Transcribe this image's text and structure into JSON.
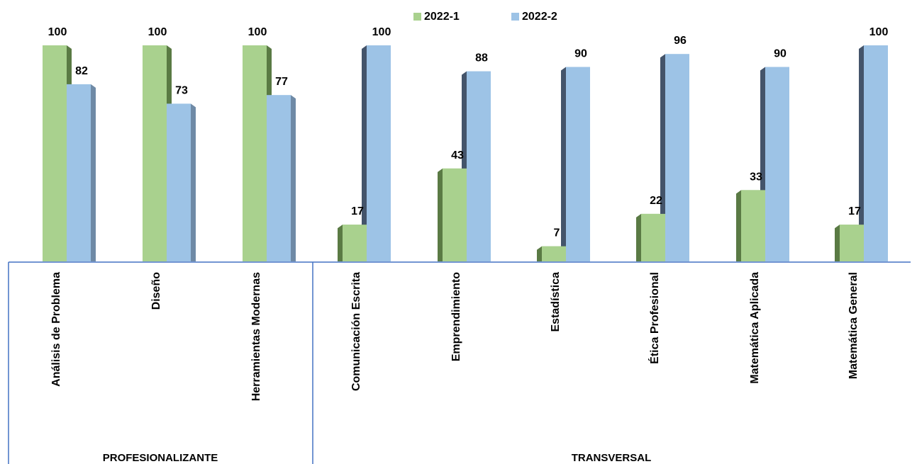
{
  "chart_data": {
    "type": "bar",
    "title": "",
    "xlabel": "",
    "ylabel": "",
    "ylim": [
      0,
      100
    ],
    "grid": false,
    "legend_position": "top-center",
    "groups": [
      {
        "label": "PROFESIONALIZANTE",
        "categories": [
          "Análisis de Problema",
          "Diseño",
          "Herramientas Modernas"
        ]
      },
      {
        "label": "TRANSVERSAL",
        "categories": [
          "Comunicación Escrita",
          "Emprendimiento",
          "Estadística",
          "Ética Profesional",
          "Matemática Aplicada",
          "Matemática General"
        ]
      }
    ],
    "categories": [
      "Análisis de Problema",
      "Diseño",
      "Herramientas Modernas",
      "Comunicación Escrita",
      "Emprendimiento",
      "Estadística",
      "Ética Profesional",
      "Matemática Aplicada",
      "Matemática General"
    ],
    "series": [
      {
        "name": "2022-1",
        "color": "#a9d18e",
        "side_color": "#5a7a44",
        "values": [
          100,
          100,
          100,
          17,
          43,
          7,
          22,
          33,
          17
        ]
      },
      {
        "name": "2022-2",
        "color": "#9dc3e6",
        "side_color": "#44546a",
        "values": [
          82,
          73,
          77,
          100,
          88,
          90,
          96,
          90,
          100
        ]
      }
    ]
  },
  "colors": {
    "axis_line": "#4472c4"
  }
}
